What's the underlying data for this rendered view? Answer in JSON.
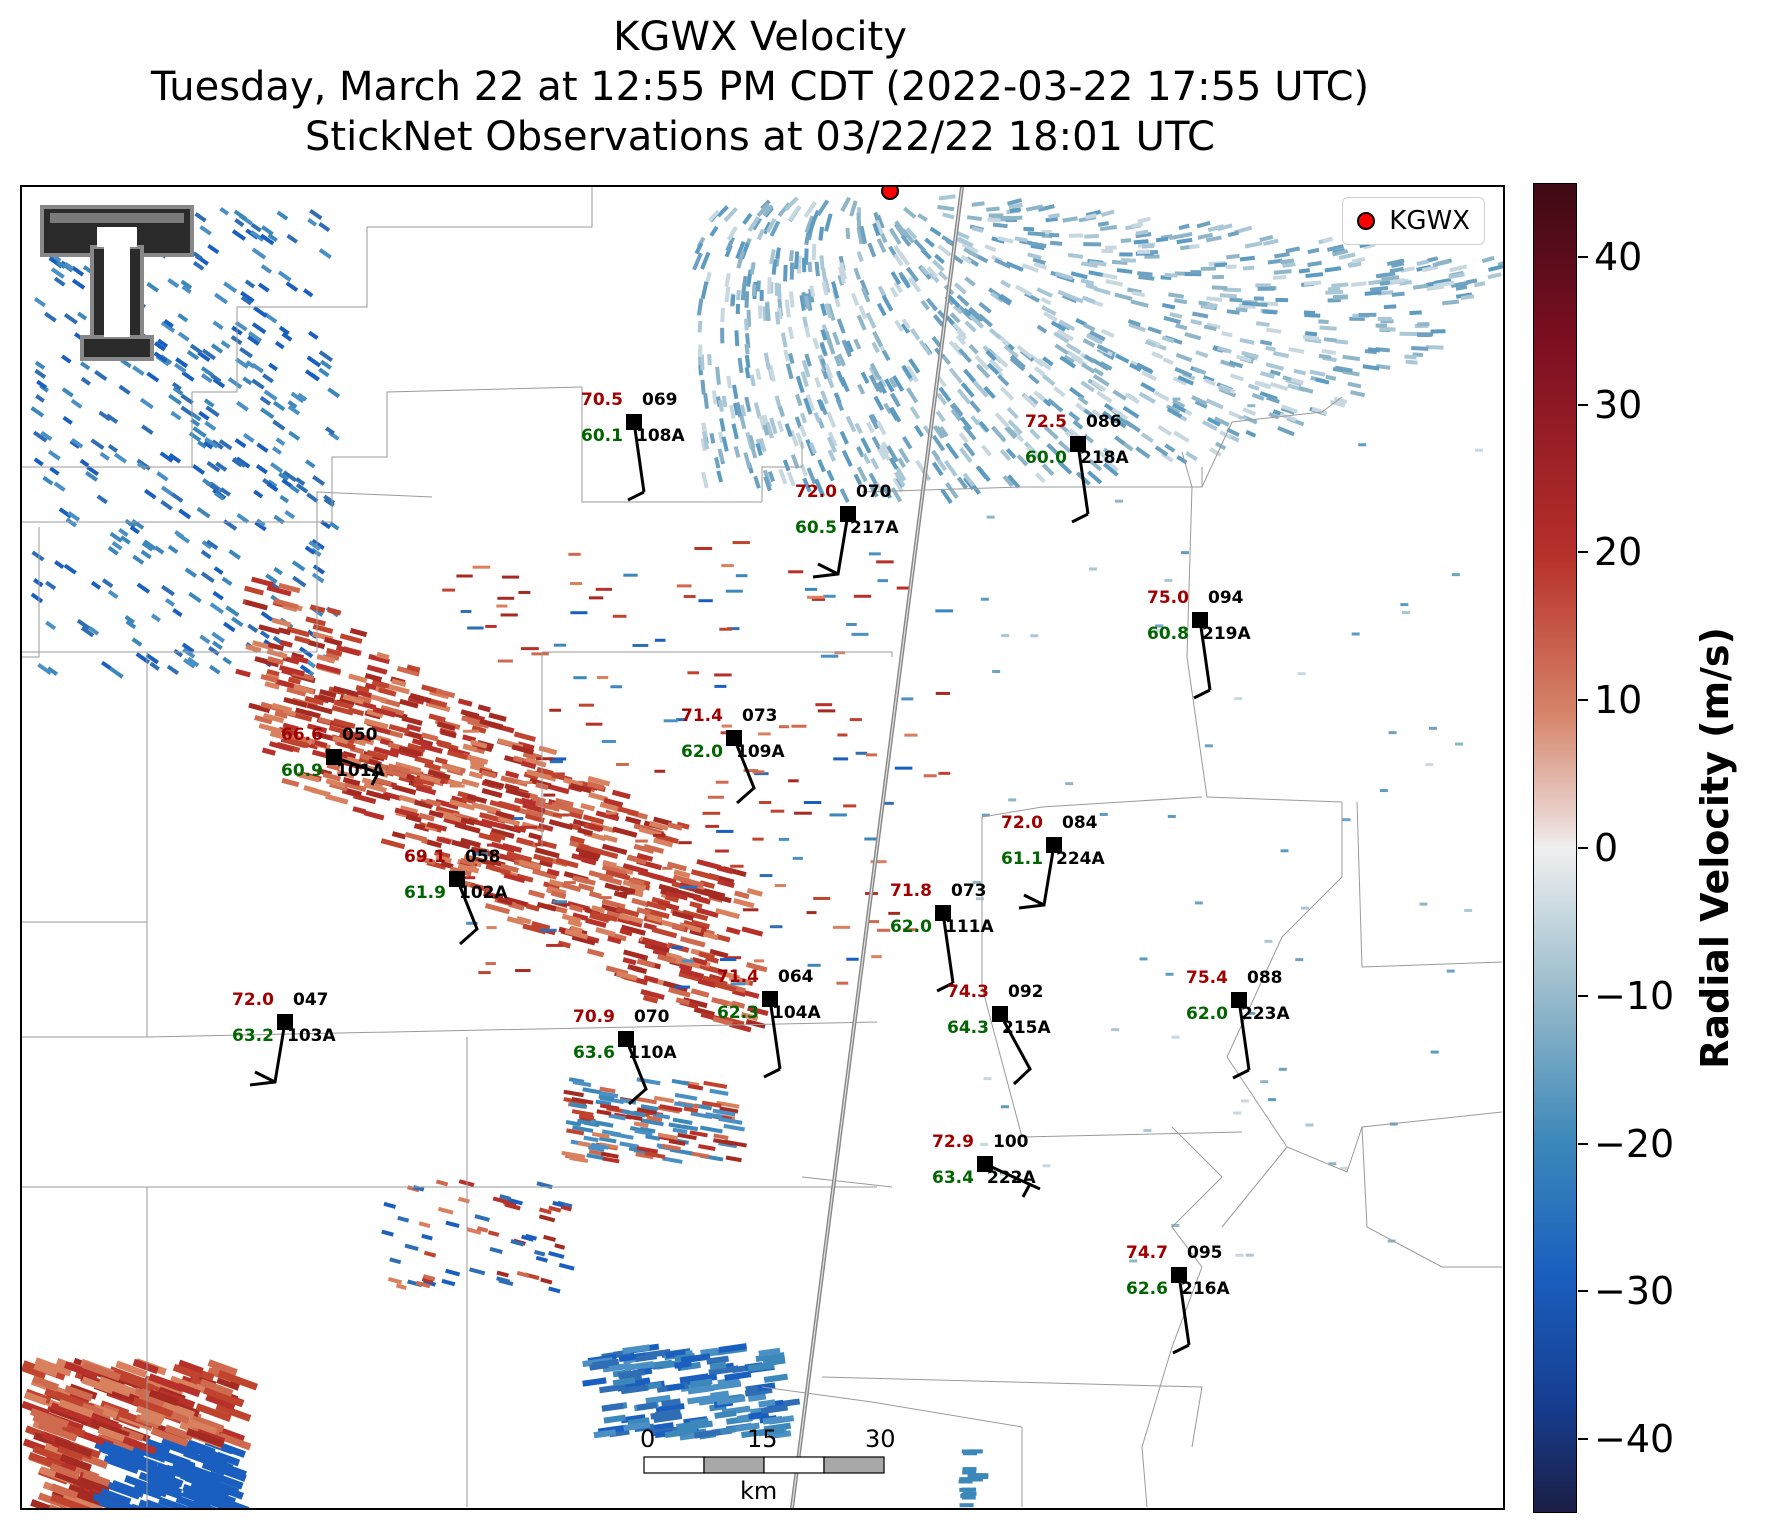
{
  "header": {
    "title": "KGWX Velocity",
    "subtitle1": "Tuesday, March 22 at 12:55 PM CDT (2022-03-22 17:55 UTC)",
    "subtitle2": "StickNet Observations at 03/22/22 18:01 UTC"
  },
  "legend": {
    "label": "KGWX"
  },
  "colorbar": {
    "label": "Radial Velocity (m/s)",
    "ticks": [
      "40",
      "30",
      "20",
      "10",
      "0",
      "−10",
      "−20",
      "−30",
      "−40"
    ],
    "range": [
      -45,
      45
    ]
  },
  "scalebar": {
    "ticks": [
      "0",
      "15",
      "30"
    ],
    "unit": "km"
  },
  "stations": [
    {
      "id": "108A",
      "temp": "70.5",
      "dew": "60.1",
      "dir": "069"
    },
    {
      "id": "217A",
      "temp": "72.0",
      "dew": "60.5",
      "dir": "070"
    },
    {
      "id": "218A",
      "temp": "72.5",
      "dew": "60.0",
      "dir": "086"
    },
    {
      "id": "219A",
      "temp": "75.0",
      "dew": "60.8",
      "dir": "094"
    },
    {
      "id": "101A",
      "temp": "66.6",
      "dew": "60.9",
      "dir": "050"
    },
    {
      "id": "109A",
      "temp": "71.4",
      "dew": "62.0",
      "dir": "073"
    },
    {
      "id": "224A",
      "temp": "72.0",
      "dew": "61.1",
      "dir": "084"
    },
    {
      "id": "102A",
      "temp": "69.1",
      "dew": "61.9",
      "dir": "058"
    },
    {
      "id": "111A",
      "temp": "71.8",
      "dew": "62.0",
      "dir": "073"
    },
    {
      "id": "103A",
      "temp": "72.0",
      "dew": "63.2",
      "dir": "047"
    },
    {
      "id": "104A",
      "temp": "71.4",
      "dew": "62.3",
      "dir": "064"
    },
    {
      "id": "110A",
      "temp": "70.9",
      "dew": "63.6",
      "dir": "070"
    },
    {
      "id": "215A",
      "temp": "74.3",
      "dew": "64.3",
      "dir": "092"
    },
    {
      "id": "223A",
      "temp": "75.4",
      "dew": "62.0",
      "dir": "088"
    },
    {
      "id": "222A",
      "temp": "72.9",
      "dew": "63.4",
      "dir": "100"
    },
    {
      "id": "216A",
      "temp": "74.7",
      "dew": "62.6",
      "dir": "095"
    }
  ],
  "colors": {
    "temp": "#a00000",
    "dew": "#006400",
    "radar_site": "#ff0000"
  }
}
